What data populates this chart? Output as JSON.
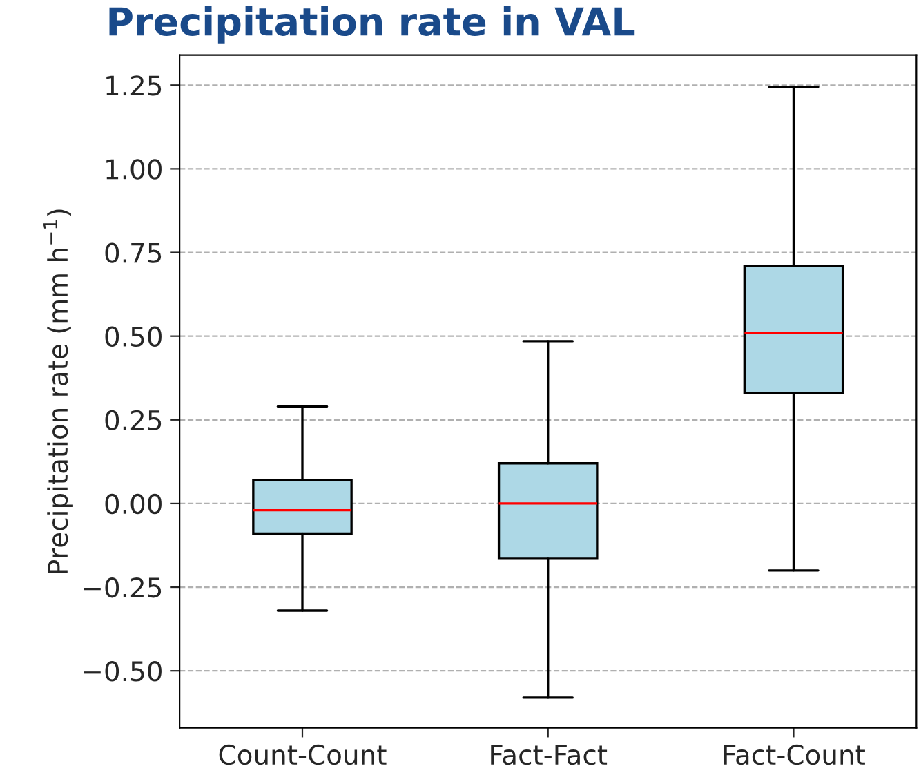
{
  "chart_data": {
    "type": "box",
    "title": "Precipitation rate in VAL",
    "ylabel": "Precipitation rate (mm h$^{−1}$)",
    "categories": [
      "Count-Count",
      "Fact-Fact",
      "Fact-Count"
    ],
    "boxes": [
      {
        "low": -0.32,
        "q1": -0.09,
        "median": -0.02,
        "q3": 0.07,
        "high": 0.29
      },
      {
        "low": -0.58,
        "q1": -0.165,
        "median": 0.0,
        "q3": 0.12,
        "high": 0.485
      },
      {
        "low": -0.2,
        "q1": 0.33,
        "median": 0.51,
        "q3": 0.71,
        "high": 1.245
      }
    ],
    "color": "#add8e6",
    "ylim": [
      -0.67,
      1.34
    ],
    "yticks": [
      {
        "value": -0.5,
        "label": "−0.50"
      },
      {
        "value": -0.25,
        "label": "−0.25"
      },
      {
        "value": 0,
        "label": "0.00"
      },
      {
        "value": 0.25,
        "label": "0.25"
      },
      {
        "value": 0.5,
        "label": "0.50"
      },
      {
        "value": 0.75,
        "label": "0.75"
      },
      {
        "value": 1.0,
        "label": "1.00"
      },
      {
        "value": 1.25,
        "label": "1.25"
      }
    ],
    "grid": "y"
  }
}
